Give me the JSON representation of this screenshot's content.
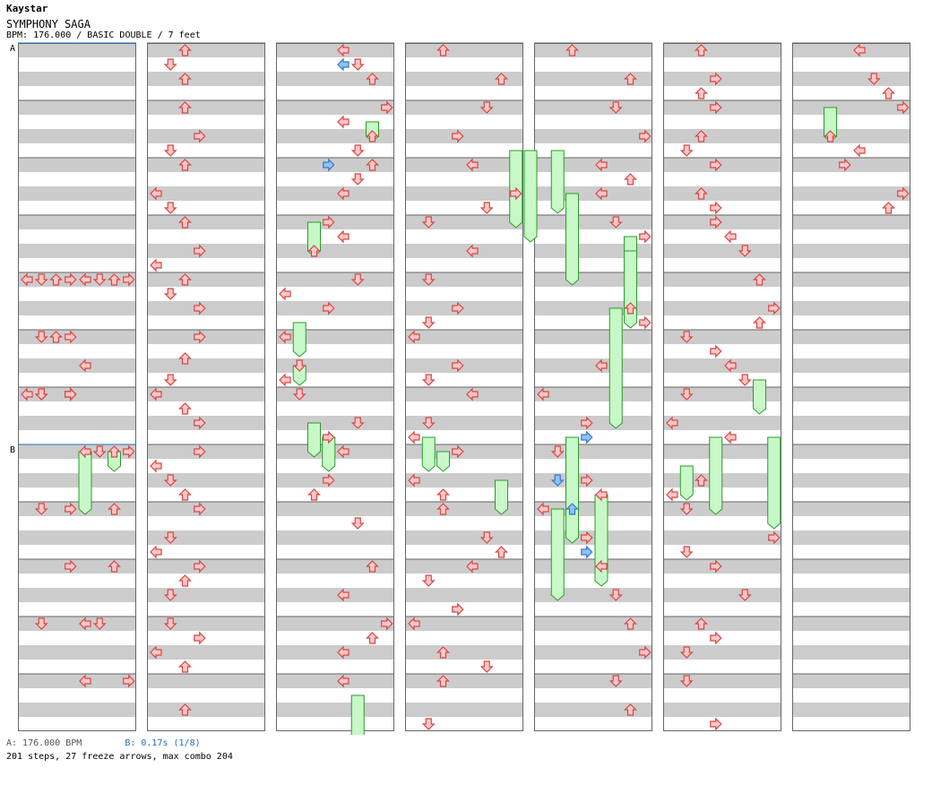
{
  "header": {
    "artist": "Kaystar",
    "title": "SYMPHONY SAGA",
    "meta": "BPM: 176.000 / BASIC DOUBLE / 7 feet"
  },
  "markers": [
    "A",
    "B"
  ],
  "footer": {
    "bpm_a": "A: 176.000 BPM",
    "bpm_b": "B: 0.17s (1/8)",
    "stats": "201 steps, 27 freeze arrows, max combo 204"
  },
  "colors": {
    "band": "#cccccc",
    "border": "#666666",
    "arrow_fill": "#ffc8c8",
    "arrow_stroke": "#d84444",
    "shock_fill": "#8cc4f4",
    "shock_stroke": "#3a74c8",
    "freeze_fill": "#c8f8c8",
    "freeze_stroke": "#2c9a2c",
    "marker_line": "#1f6fbf"
  },
  "chart_data": {
    "type": "step-chart",
    "columns": 7,
    "measures_per_column": 12,
    "lanes": 8,
    "lane_directions": [
      "left",
      "down",
      "up",
      "right",
      "left",
      "down",
      "up",
      "right"
    ],
    "beat_unit": "16th (position in measure 0-15)",
    "notes": [
      [
        0,
        4,
        0,
        4,
        2,
        1
      ],
      [
        0,
        4,
        0,
        5,
        2,
        1
      ],
      [
        0,
        4,
        0,
        6,
        2,
        1
      ],
      [
        0,
        4,
        0,
        7,
        2,
        1
      ],
      [
        0,
        4,
        0,
        0,
        3,
        1
      ],
      [
        0,
        4,
        0,
        1,
        3,
        1
      ],
      [
        0,
        4,
        0,
        2,
        3,
        1
      ],
      [
        0,
        4,
        0,
        3,
        3,
        1
      ],
      [
        0,
        5,
        0,
        3,
        4,
        1
      ],
      [
        0,
        5,
        0,
        2,
        4,
        1
      ],
      [
        0,
        5,
        0,
        1,
        4,
        1
      ],
      [
        0,
        5,
        8,
        4,
        4,
        1
      ],
      [
        0,
        6,
        0,
        3,
        8,
        1
      ],
      [
        0,
        6,
        0,
        3,
        1,
        1
      ],
      [
        0,
        6,
        0,
        1,
        8,
        1
      ],
      [
        0,
        6,
        0,
        3,
        8,
        1
      ],
      [
        0,
        6,
        0,
        0,
        1,
        1
      ],
      [
        0,
        6,
        0,
        1,
        8,
        1
      ],
      [
        0,
        6,
        0,
        3,
        6,
        1
      ],
      [
        0,
        7,
        0,
        4,
        8,
        1
      ],
      [
        0,
        7,
        0,
        5,
        4,
        1
      ],
      [
        0,
        7,
        0,
        6,
        2,
        1
      ],
      [
        0,
        7,
        0,
        7,
        8,
        1
      ],
      [
        0,
        8,
        0,
        3,
        2,
        1
      ],
      [
        0,
        8,
        0,
        1,
        2,
        1
      ],
      [
        0,
        8,
        0,
        6,
        6,
        1
      ],
      [
        0,
        9,
        0,
        3,
        4,
        1
      ],
      [
        0,
        9,
        0,
        6,
        2,
        1
      ],
      [
        0,
        10,
        0,
        4,
        2,
        1
      ],
      [
        0,
        10,
        0,
        1,
        2,
        1
      ],
      [
        0,
        10,
        0,
        5,
        6,
        1
      ],
      [
        0,
        11,
        0,
        4,
        4,
        1
      ],
      [
        0,
        11,
        0,
        7,
        8,
        1
      ],
      [
        1,
        0,
        0,
        2,
        3,
        0
      ],
      [
        1,
        0,
        4,
        1,
        2,
        0
      ],
      [
        1,
        0,
        8,
        2,
        2,
        0
      ],
      [
        1,
        1,
        0,
        2,
        1,
        0
      ],
      [
        1,
        1,
        8,
        3,
        1,
        0
      ],
      [
        1,
        1,
        12,
        1,
        1,
        0
      ],
      [
        1,
        2,
        0,
        2,
        1,
        0
      ],
      [
        1,
        2,
        8,
        0,
        1,
        0
      ],
      [
        1,
        2,
        12,
        1,
        1,
        0
      ],
      [
        1,
        3,
        0,
        2,
        1,
        0
      ],
      [
        1,
        3,
        8,
        3,
        1,
        0
      ],
      [
        1,
        3,
        12,
        0,
        1,
        0
      ],
      [
        1,
        4,
        0,
        2,
        1,
        0
      ],
      [
        1,
        4,
        4,
        1,
        1,
        0
      ],
      [
        1,
        4,
        8,
        3,
        1,
        0
      ],
      [
        1,
        5,
        0,
        3,
        1,
        0
      ],
      [
        1,
        5,
        6,
        2,
        1,
        0
      ],
      [
        1,
        5,
        12,
        1,
        1,
        0
      ],
      [
        1,
        6,
        0,
        0,
        1,
        0
      ],
      [
        1,
        6,
        4,
        2,
        1,
        0
      ],
      [
        1,
        6,
        8,
        3,
        1,
        0
      ],
      [
        1,
        7,
        0,
        3,
        1,
        0
      ],
      [
        1,
        7,
        4,
        0,
        2,
        0
      ],
      [
        1,
        7,
        8,
        1,
        1,
        0
      ],
      [
        1,
        7,
        12,
        2,
        1,
        0
      ],
      [
        1,
        8,
        0,
        3,
        1,
        0
      ],
      [
        1,
        8,
        8,
        1,
        1,
        0
      ],
      [
        1,
        8,
        12,
        0,
        1,
        0
      ],
      [
        1,
        9,
        0,
        3,
        1,
        0
      ],
      [
        1,
        9,
        4,
        2,
        1,
        0
      ],
      [
        1,
        9,
        8,
        1,
        1,
        0
      ],
      [
        1,
        10,
        0,
        1,
        1,
        0
      ],
      [
        1,
        10,
        4,
        3,
        1,
        0
      ],
      [
        1,
        10,
        8,
        0,
        1,
        0
      ],
      [
        1,
        10,
        12,
        2,
        1,
        0
      ],
      [
        1,
        11,
        8,
        2,
        1,
        0
      ],
      [
        2,
        0,
        0,
        4,
        3,
        0
      ],
      [
        2,
        0,
        4,
        5,
        3,
        0
      ],
      [
        2,
        0,
        8,
        6,
        3,
        0
      ],
      [
        2,
        1,
        0,
        7,
        3,
        0
      ],
      [
        2,
        1,
        4,
        4,
        2,
        0
      ],
      [
        2,
        1,
        8,
        6,
        1,
        0
      ],
      [
        2,
        1,
        12,
        5,
        1,
        0
      ],
      [
        2,
        2,
        0,
        6,
        1,
        0
      ],
      [
        2,
        2,
        4,
        5,
        1,
        0
      ],
      [
        2,
        2,
        8,
        4,
        1,
        0
      ],
      [
        2,
        3,
        0,
        3,
        1,
        0
      ],
      [
        2,
        3,
        4,
        4,
        1,
        0
      ],
      [
        2,
        3,
        8,
        2,
        1,
        0
      ],
      [
        2,
        4,
        0,
        5,
        1,
        0
      ],
      [
        2,
        4,
        4,
        0,
        2,
        0
      ],
      [
        2,
        4,
        8,
        3,
        1,
        0
      ],
      [
        2,
        5,
        0,
        0,
        1,
        0
      ],
      [
        2,
        5,
        8,
        1,
        1,
        0
      ],
      [
        2,
        5,
        12,
        0,
        1,
        0
      ],
      [
        2,
        6,
        0,
        1,
        1,
        0
      ],
      [
        2,
        6,
        8,
        5,
        2,
        0
      ],
      [
        2,
        6,
        12,
        3,
        1,
        0
      ],
      [
        2,
        7,
        0,
        4,
        1,
        0
      ],
      [
        2,
        7,
        8,
        3,
        1,
        0
      ],
      [
        2,
        7,
        12,
        2,
        1,
        0
      ],
      [
        2,
        8,
        4,
        5,
        1,
        0
      ],
      [
        2,
        9,
        0,
        6,
        1,
        0
      ],
      [
        2,
        9,
        8,
        4,
        1,
        0
      ],
      [
        2,
        10,
        0,
        7,
        1,
        0
      ],
      [
        2,
        10,
        4,
        6,
        1,
        0
      ],
      [
        2,
        10,
        8,
        4,
        1,
        0
      ],
      [
        2,
        11,
        0,
        4,
        2,
        0
      ],
      [
        3,
        0,
        0,
        2,
        3,
        0
      ],
      [
        3,
        0,
        8,
        6,
        2,
        0
      ],
      [
        3,
        1,
        0,
        5,
        3,
        0
      ],
      [
        3,
        1,
        8,
        3,
        1,
        0
      ],
      [
        3,
        2,
        0,
        4,
        1,
        0
      ],
      [
        3,
        2,
        8,
        7,
        1,
        0
      ],
      [
        3,
        2,
        12,
        5,
        1,
        0
      ],
      [
        3,
        3,
        0,
        1,
        2,
        0
      ],
      [
        3,
        3,
        8,
        4,
        1,
        0
      ],
      [
        3,
        4,
        0,
        1,
        1,
        0
      ],
      [
        3,
        4,
        8,
        3,
        1,
        0
      ],
      [
        3,
        4,
        12,
        1,
        1,
        0
      ],
      [
        3,
        5,
        0,
        0,
        1,
        0
      ],
      [
        3,
        5,
        8,
        3,
        1,
        0
      ],
      [
        3,
        5,
        12,
        1,
        1,
        0
      ],
      [
        3,
        6,
        0,
        4,
        1,
        0
      ],
      [
        3,
        6,
        8,
        1,
        1,
        0
      ],
      [
        3,
        6,
        12,
        0,
        1,
        0
      ],
      [
        3,
        7,
        0,
        3,
        2,
        0
      ],
      [
        3,
        7,
        8,
        0,
        1,
        0
      ],
      [
        3,
        7,
        12,
        2,
        1,
        0
      ],
      [
        3,
        8,
        0,
        2,
        1,
        0
      ],
      [
        3,
        8,
        8,
        5,
        1,
        0
      ],
      [
        3,
        8,
        12,
        6,
        1,
        0
      ],
      [
        3,
        9,
        0,
        4,
        1,
        0
      ],
      [
        3,
        9,
        4,
        1,
        1,
        0
      ],
      [
        3,
        9,
        12,
        3,
        1,
        0
      ],
      [
        3,
        10,
        0,
        0,
        1,
        0
      ],
      [
        3,
        10,
        8,
        2,
        1,
        0
      ],
      [
        3,
        10,
        12,
        5,
        1,
        0
      ],
      [
        3,
        11,
        0,
        2,
        1,
        0
      ],
      [
        3,
        11,
        12,
        1,
        1,
        0
      ],
      [
        4,
        0,
        0,
        2,
        3,
        1
      ],
      [
        4,
        0,
        8,
        6,
        3,
        1
      ],
      [
        4,
        1,
        0,
        5,
        3,
        1
      ],
      [
        4,
        1,
        8,
        7,
        3,
        1
      ],
      [
        4,
        2,
        0,
        4,
        3,
        1
      ],
      [
        4,
        2,
        4,
        6,
        3,
        1
      ],
      [
        4,
        2,
        8,
        4,
        3,
        1
      ],
      [
        4,
        3,
        0,
        5,
        3,
        1
      ],
      [
        4,
        3,
        4,
        7,
        2,
        1
      ],
      [
        4,
        4,
        8,
        6,
        3,
        1
      ],
      [
        4,
        4,
        12,
        7,
        1,
        1
      ],
      [
        4,
        5,
        8,
        4,
        2,
        1
      ],
      [
        4,
        6,
        0,
        0,
        2,
        1
      ],
      [
        4,
        6,
        8,
        3,
        2,
        1
      ],
      [
        4,
        7,
        0,
        1,
        2,
        1
      ],
      [
        4,
        7,
        8,
        3,
        1,
        1
      ],
      [
        4,
        7,
        12,
        4,
        2,
        1
      ],
      [
        4,
        8,
        0,
        0,
        2,
        1
      ],
      [
        4,
        8,
        8,
        3,
        1,
        1
      ],
      [
        4,
        9,
        0,
        4,
        1,
        1
      ],
      [
        4,
        9,
        8,
        5,
        1,
        1
      ],
      [
        4,
        10,
        0,
        6,
        1,
        1
      ],
      [
        4,
        10,
        8,
        7,
        1,
        1
      ],
      [
        4,
        11,
        0,
        5,
        2,
        1
      ],
      [
        4,
        11,
        8,
        6,
        2,
        1
      ],
      [
        5,
        0,
        0,
        2,
        0,
        1
      ],
      [
        5,
        0,
        8,
        3,
        1,
        1
      ],
      [
        5,
        0,
        12,
        2,
        1,
        1
      ],
      [
        5,
        1,
        0,
        3,
        4,
        1
      ],
      [
        5,
        1,
        8,
        2,
        1,
        1
      ],
      [
        5,
        1,
        12,
        1,
        2,
        1
      ],
      [
        5,
        2,
        0,
        3,
        2,
        1
      ],
      [
        5,
        2,
        8,
        2,
        1,
        1
      ],
      [
        5,
        2,
        12,
        3,
        2,
        1
      ],
      [
        5,
        3,
        0,
        3,
        2,
        1
      ],
      [
        5,
        3,
        4,
        4,
        2,
        1
      ],
      [
        5,
        3,
        8,
        5,
        2,
        1
      ],
      [
        5,
        4,
        0,
        6,
        2,
        1
      ],
      [
        5,
        4,
        8,
        7,
        2,
        1
      ],
      [
        5,
        4,
        12,
        6,
        2,
        1
      ],
      [
        5,
        5,
        0,
        1,
        2,
        1
      ],
      [
        5,
        5,
        4,
        3,
        3,
        1
      ],
      [
        5,
        5,
        8,
        4,
        2,
        1
      ],
      [
        5,
        5,
        12,
        5,
        4,
        1
      ],
      [
        5,
        6,
        0,
        1,
        1,
        1
      ],
      [
        5,
        6,
        8,
        0,
        3,
        1
      ],
      [
        5,
        6,
        12,
        4,
        2,
        1
      ],
      [
        5,
        7,
        8,
        2,
        2,
        1
      ],
      [
        5,
        7,
        12,
        0,
        4,
        1
      ],
      [
        5,
        8,
        0,
        1,
        3,
        1
      ],
      [
        5,
        8,
        8,
        7,
        1,
        1
      ],
      [
        5,
        8,
        12,
        1,
        4,
        1
      ],
      [
        5,
        9,
        0,
        3,
        2,
        1
      ],
      [
        5,
        9,
        8,
        5,
        2,
        1
      ],
      [
        5,
        10,
        0,
        2,
        1,
        1
      ],
      [
        5,
        10,
        4,
        3,
        1,
        1
      ],
      [
        5,
        10,
        8,
        1,
        1,
        1
      ],
      [
        5,
        11,
        0,
        1,
        2,
        1
      ],
      [
        5,
        11,
        12,
        3,
        2,
        1
      ],
      [
        6,
        0,
        0,
        4,
        3,
        0
      ],
      [
        6,
        0,
        8,
        5,
        3,
        0
      ],
      [
        6,
        0,
        12,
        6,
        3,
        0
      ],
      [
        6,
        1,
        0,
        7,
        3,
        0
      ],
      [
        6,
        1,
        8,
        2,
        3,
        0
      ],
      [
        6,
        1,
        12,
        4,
        3,
        0
      ],
      [
        6,
        2,
        0,
        3,
        3,
        0
      ],
      [
        6,
        2,
        8,
        7,
        3,
        0
      ],
      [
        6,
        2,
        12,
        6,
        3,
        0
      ]
    ],
    "shocks": [
      [
        2,
        0,
        4,
        4
      ],
      [
        2,
        2,
        0,
        3
      ],
      [
        4,
        6,
        12,
        3
      ],
      [
        4,
        7,
        8,
        1
      ],
      [
        4,
        8,
        0,
        2
      ],
      [
        4,
        8,
        12,
        3
      ]
    ],
    "freezes": [
      [
        0,
        7,
        0,
        4,
        4
      ],
      [
        0,
        7,
        0,
        6,
        1
      ],
      [
        2,
        1,
        4,
        6,
        1
      ],
      [
        2,
        3,
        0,
        2,
        2
      ],
      [
        2,
        4,
        12,
        1,
        2
      ],
      [
        2,
        5,
        8,
        1,
        1
      ],
      [
        2,
        6,
        8,
        2,
        2
      ],
      [
        2,
        6,
        12,
        3,
        2
      ],
      [
        2,
        11,
        4,
        5,
        5
      ],
      [
        3,
        1,
        12,
        7,
        5
      ],
      [
        3,
        1,
        12,
        8,
        6
      ],
      [
        3,
        6,
        12,
        1,
        2
      ],
      [
        3,
        7,
        0,
        2,
        1
      ],
      [
        3,
        7,
        8,
        6,
        2
      ],
      [
        4,
        1,
        12,
        1,
        4
      ],
      [
        4,
        2,
        8,
        2,
        6
      ],
      [
        4,
        3,
        4,
        6,
        5
      ],
      [
        4,
        3,
        8,
        6,
        5
      ],
      [
        4,
        4,
        8,
        5,
        8
      ],
      [
        4,
        6,
        12,
        2,
        7
      ],
      [
        4,
        7,
        12,
        4,
        6
      ],
      [
        4,
        8,
        0,
        1,
        6
      ],
      [
        5,
        5,
        12,
        6,
        2
      ],
      [
        5,
        6,
        12,
        3,
        5
      ],
      [
        5,
        6,
        12,
        7,
        6
      ],
      [
        5,
        7,
        4,
        1,
        2
      ],
      [
        6,
        1,
        0,
        2,
        2
      ]
    ]
  }
}
